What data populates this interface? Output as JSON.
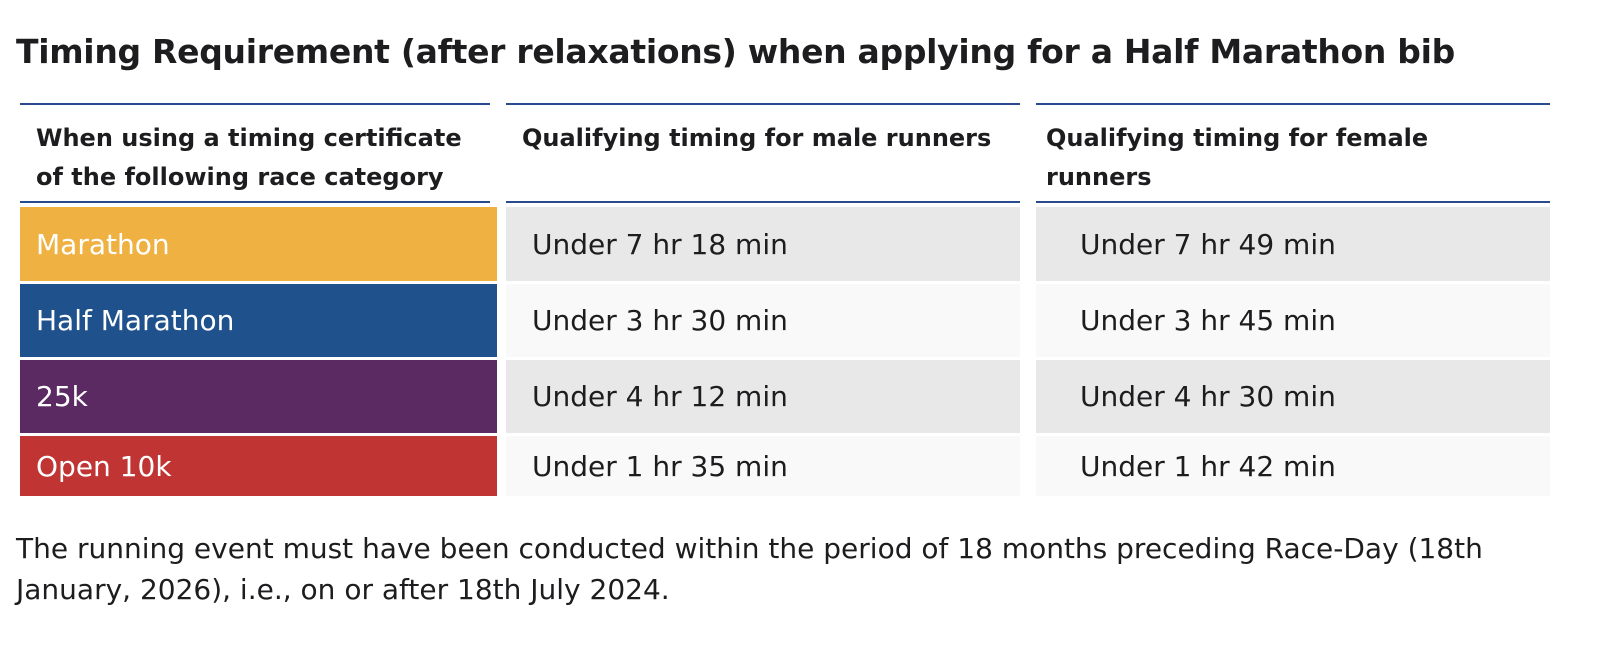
{
  "title": "Timing Requirement (after relaxations) when applying for a Half Marathon bib",
  "table": {
    "headers": [
      "When using a timing certificate of the following race category",
      "Qualifying timing for male runners",
      "Qualifying timing for female runners"
    ],
    "rows": [
      [
        "Marathon",
        "Under 7 hr 18 min",
        "Under 7 hr 49 min"
      ],
      [
        "Half Marathon",
        "Under 3 hr 30 min",
        "Under 3 hr 45 min"
      ],
      [
        "25k",
        "Under 4 hr 12 min",
        "Under 4 hr 30 min"
      ],
      [
        "Open 10k",
        "Under 1 hr 35 min",
        "Under 1 hr 42 min"
      ]
    ]
  },
  "note": "The running event must have been conducted within the period of 18 months preceding Race-Day (18th January, 2026), i.e., on or after 18th July 2024."
}
